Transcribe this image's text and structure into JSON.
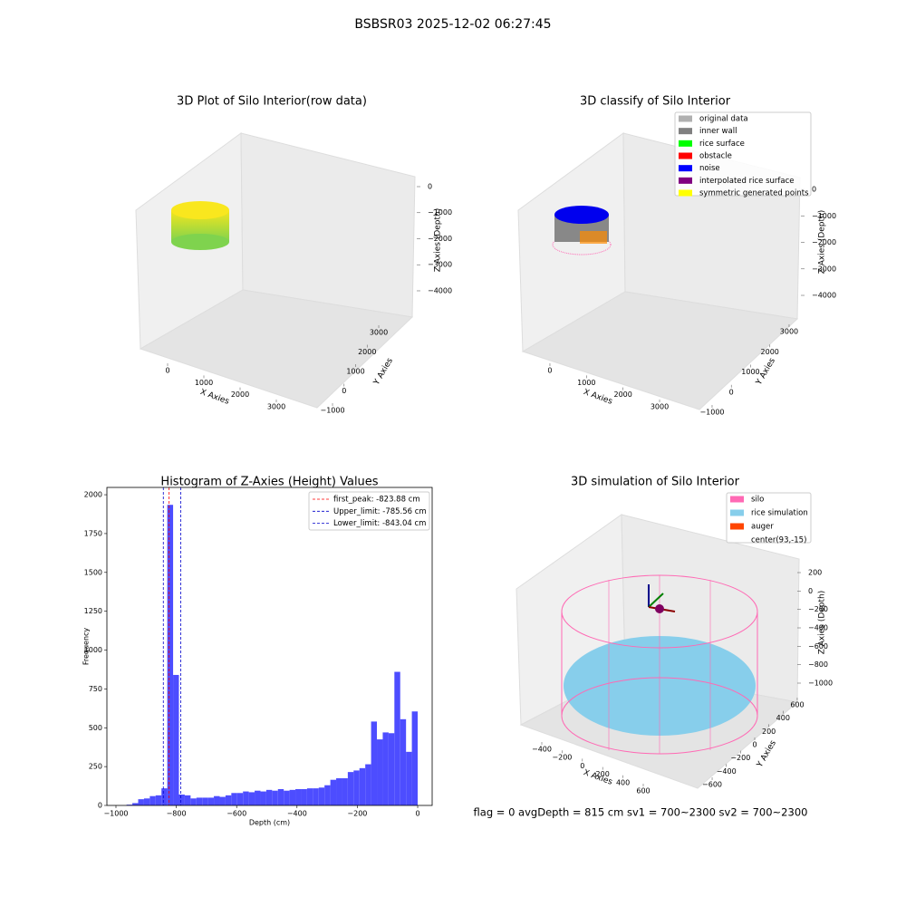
{
  "title": "BSBSR03 2025-12-02 06:27:45",
  "footer": "flag = 0     avgDepth = 815 cm  sv1 = 700~2300  sv2 = 700~2300",
  "chart_data": [
    {
      "type": "scatter3d",
      "title": "3D Plot of Silo Interior(row data)",
      "xlabel": "X Axies",
      "ylabel": "Y Axies",
      "zlabel": "Z Axies (Depth)",
      "xlim": [
        -500,
        3500
      ],
      "ylim": [
        -1300,
        3500
      ],
      "zlim": [
        -4700,
        400
      ],
      "xticks": [
        0,
        1000,
        2000,
        3000
      ],
      "yticks": [
        {
          "value": -1000,
          "label": "−1000"
        },
        0,
        1000,
        2000,
        3000
      ],
      "zticks": [
        0,
        {
          "value": -1000,
          "label": "−1000"
        },
        {
          "value": -2000,
          "label": "−2000"
        },
        {
          "value": -3000,
          "label": "−3000"
        },
        {
          "value": -4000,
          "label": "−4000"
        }
      ]
    },
    {
      "type": "scatter3d",
      "title": "3D classify of Silo Interior",
      "xlabel": "X Axies",
      "ylabel": "Y Axies",
      "zlabel": "Z Axies (Depth)",
      "xlim": [
        -500,
        3500
      ],
      "ylim": [
        -1300,
        3500
      ],
      "zlim": [
        -4700,
        400
      ],
      "xticks": [
        0,
        1000,
        2000,
        3000
      ],
      "yticks": [
        {
          "value": -1000,
          "label": "−1000"
        },
        0,
        1000,
        2000,
        3000
      ],
      "zticks": [
        0,
        {
          "value": -1000,
          "label": "−1000"
        },
        {
          "value": -2000,
          "label": "−2000"
        },
        {
          "value": -3000,
          "label": "−3000"
        },
        {
          "value": -4000,
          "label": "−4000"
        }
      ],
      "legend": [
        {
          "name": "original data",
          "color": "#b0b0b0"
        },
        {
          "name": "inner wall",
          "color": "#808080"
        },
        {
          "name": "rice surface",
          "color": "#00ff00"
        },
        {
          "name": "obstacle",
          "color": "#ff0000"
        },
        {
          "name": "noise",
          "color": "#0000ff"
        },
        {
          "name": "interpolated rice surface",
          "color": "#800080"
        },
        {
          "name": "symmetric generated points",
          "color": "#ffff00"
        }
      ]
    },
    {
      "type": "histogram",
      "title": "Histogram of Z-Axies (Height) Values",
      "xlabel": "Depth (cm)",
      "ylabel": "Frequency",
      "color": "#4d4dff",
      "bins": [
        -965.0,
        -945.7,
        -926.4,
        -907.1,
        -887.8,
        -868.5,
        -849.2,
        -829.9,
        -810.6,
        -791.3,
        -772.0,
        -752.7,
        -733.4,
        -714.1,
        -694.8,
        -675.5,
        -656.2,
        -636.9,
        -617.6,
        -598.3,
        -579.0,
        -559.7,
        -540.4,
        -521.1,
        -501.8,
        -482.5,
        -463.2,
        -443.9,
        -424.6,
        -405.3,
        -386.0,
        -366.7,
        -347.4,
        -328.1,
        -308.8,
        -289.5,
        -270.2,
        -250.9,
        -231.6,
        -212.3,
        -193.0,
        -173.7,
        -154.4,
        -135.1,
        -115.8,
        -96.5,
        -77.2,
        -57.9,
        -38.6,
        -19.3,
        0.0
      ],
      "values": [
        5,
        15,
        40,
        45,
        60,
        65,
        110,
        1935,
        840,
        70,
        65,
        45,
        50,
        50,
        50,
        60,
        55,
        65,
        80,
        80,
        90,
        85,
        95,
        90,
        100,
        95,
        105,
        95,
        100,
        105,
        105,
        110,
        110,
        115,
        130,
        165,
        175,
        175,
        215,
        225,
        240,
        265,
        540,
        425,
        470,
        465,
        860,
        555,
        345,
        605
      ],
      "xlim": [
        -1030,
        48
      ],
      "ylim": [
        0,
        2047
      ],
      "xticks": [
        {
          "value": -1000,
          "label": "−1000"
        },
        {
          "value": -800,
          "label": "−800"
        },
        {
          "value": -600,
          "label": "−600"
        },
        {
          "value": -400,
          "label": "−400"
        },
        {
          "value": -200,
          "label": "−200"
        },
        0
      ],
      "yticks": [
        0,
        250,
        500,
        750,
        1000,
        1250,
        1500,
        1750,
        2000
      ],
      "lines": [
        {
          "name": "first_peak",
          "value": -823.88,
          "label": "first_peak: -823.88 cm",
          "color": "#ff0000"
        },
        {
          "name": "Upper_limit",
          "value": -785.56,
          "label": "Upper_limit: -785.56 cm",
          "color": "#0000cc"
        },
        {
          "name": "Lower_limit",
          "value": -843.04,
          "label": "Lower_limit: -843.04 cm",
          "color": "#0000cc"
        }
      ]
    },
    {
      "type": "scatter3d",
      "title": "3D simulation of Silo Interior",
      "xlabel": "X Axies",
      "ylabel": "Y Axies",
      "zlabel": "Z Axies (Depth)",
      "xlim": [
        -550,
        750
      ],
      "ylim": [
        -750,
        750
      ],
      "zlim": [
        -1150,
        350
      ],
      "xticks": [
        {
          "value": -400,
          "label": "−400"
        },
        {
          "value": -200,
          "label": "−200"
        },
        0,
        200,
        400,
        600
      ],
      "yticks": [
        {
          "value": -600,
          "label": "−600"
        },
        {
          "value": -400,
          "label": "−400"
        },
        {
          "value": -200,
          "label": "−200"
        },
        0,
        200,
        400,
        600
      ],
      "zticks": [
        200,
        0,
        {
          "value": -200,
          "label": "−200"
        },
        {
          "value": -400,
          "label": "−400"
        },
        {
          "value": -600,
          "label": "−600"
        },
        {
          "value": -800,
          "label": "−800"
        },
        {
          "value": -1000,
          "label": "−1000"
        }
      ],
      "legend": [
        {
          "name": "silo",
          "color": "#ff69b4"
        },
        {
          "name": "rice simulation",
          "color": "#87ceeb"
        },
        {
          "name": "auger",
          "color": "#ff4500"
        },
        {
          "name": "center(93,-15)"
        }
      ]
    }
  ]
}
